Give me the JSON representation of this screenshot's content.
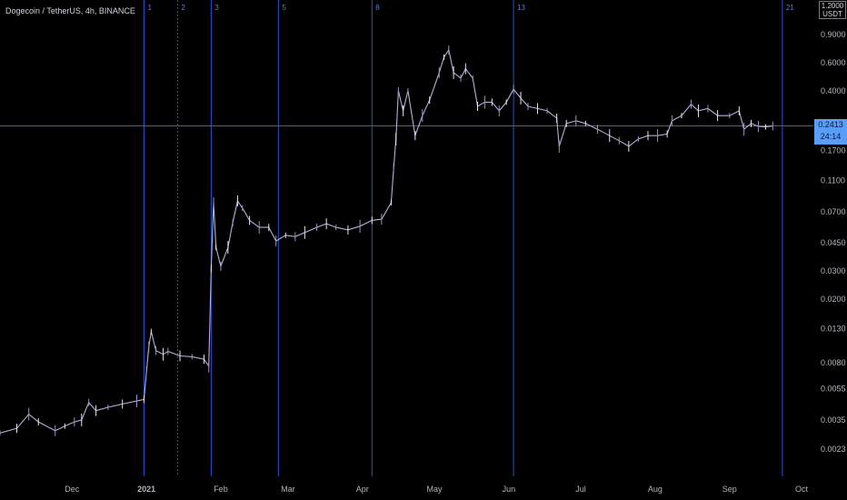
{
  "chart_data": {
    "type": "line",
    "title": "Dogecoin / TetherUS, 4h, BINANCE",
    "unit_label": "1.2000\nUSDT",
    "scale": "log",
    "ylim": [
      0.0019,
      1.25
    ],
    "y_ticks": [
      0.9,
      0.6,
      0.4,
      0.17,
      0.11,
      0.07,
      0.045,
      0.03,
      0.02,
      0.013,
      0.008,
      0.0055,
      0.0035,
      0.0023
    ],
    "x_labels": [
      {
        "label": "Dec",
        "x": "2020-12-01"
      },
      {
        "label": "2021",
        "x": "2021-01-01",
        "bold": true
      },
      {
        "label": "Feb",
        "x": "2021-02-01"
      },
      {
        "label": "Mar",
        "x": "2021-03-01"
      },
      {
        "label": "Apr",
        "x": "2021-04-01"
      },
      {
        "label": "May",
        "x": "2021-05-01"
      },
      {
        "label": "Jun",
        "x": "2021-06-01"
      },
      {
        "label": "Jul",
        "x": "2021-07-01"
      },
      {
        "label": "Aug",
        "x": "2021-08-01"
      },
      {
        "label": "Sep",
        "x": "2021-09-01"
      },
      {
        "label": "Oct",
        "x": "2021-10-01"
      }
    ],
    "vertical_markers": [
      {
        "label": "1",
        "x": "2020-12-31",
        "style": "solid"
      },
      {
        "label": "2",
        "x": "2021-01-14",
        "style": "dashed"
      },
      {
        "label": "3",
        "x": "2021-01-28",
        "style": "solid"
      },
      {
        "label": "5",
        "x": "2021-02-25",
        "style": "solid"
      },
      {
        "label": "8",
        "x": "2021-04-05",
        "style": "solid"
      },
      {
        "label": "13",
        "x": "2021-06-03",
        "style": "solid"
      },
      {
        "label": "21",
        "x": "2021-09-23",
        "style": "solid"
      }
    ],
    "current_price": {
      "value": "0.2413",
      "countdown": "24:14"
    },
    "series": [
      {
        "points": [
          [
            "2020-11-01",
            0.0029
          ],
          [
            "2020-11-08",
            0.0031
          ],
          [
            "2020-11-13",
            0.0038
          ],
          [
            "2020-11-17",
            0.0034
          ],
          [
            "2020-11-24",
            0.003
          ],
          [
            "2020-11-28",
            0.0032
          ],
          [
            "2020-12-02",
            0.0034
          ],
          [
            "2020-12-05",
            0.0035
          ],
          [
            "2020-12-08",
            0.0045
          ],
          [
            "2020-12-11",
            0.004
          ],
          [
            "2020-12-16",
            0.0042
          ],
          [
            "2020-12-22",
            0.0044
          ],
          [
            "2020-12-28",
            0.0046
          ],
          [
            "2020-12-31",
            0.0047
          ],
          [
            "2021-01-02",
            0.01
          ],
          [
            "2021-01-03",
            0.0125
          ],
          [
            "2021-01-05",
            0.0095
          ],
          [
            "2021-01-08",
            0.009
          ],
          [
            "2021-01-10",
            0.0094
          ],
          [
            "2021-01-15",
            0.0088
          ],
          [
            "2021-01-20",
            0.0087
          ],
          [
            "2021-01-25",
            0.0084
          ],
          [
            "2021-01-27",
            0.0076
          ],
          [
            "2021-01-28",
            0.031
          ],
          [
            "2021-01-29",
            0.08
          ],
          [
            "2021-01-30",
            0.042
          ],
          [
            "2021-02-01",
            0.032
          ],
          [
            "2021-02-04",
            0.042
          ],
          [
            "2021-02-06",
            0.06
          ],
          [
            "2021-02-08",
            0.082
          ],
          [
            "2021-02-10",
            0.074
          ],
          [
            "2021-02-13",
            0.062
          ],
          [
            "2021-02-17",
            0.056
          ],
          [
            "2021-02-21",
            0.056
          ],
          [
            "2021-02-24",
            0.046
          ],
          [
            "2021-02-28",
            0.05
          ],
          [
            "2021-03-04",
            0.049
          ],
          [
            "2021-03-08",
            0.052
          ],
          [
            "2021-03-13",
            0.056
          ],
          [
            "2021-03-17",
            0.059
          ],
          [
            "2021-03-21",
            0.056
          ],
          [
            "2021-03-26",
            0.054
          ],
          [
            "2021-03-31",
            0.057
          ],
          [
            "2021-04-05",
            0.062
          ],
          [
            "2021-04-09",
            0.063
          ],
          [
            "2021-04-13",
            0.08
          ],
          [
            "2021-04-14",
            0.13
          ],
          [
            "2021-04-15",
            0.2
          ],
          [
            "2021-04-16",
            0.4
          ],
          [
            "2021-04-18",
            0.3
          ],
          [
            "2021-04-20",
            0.4
          ],
          [
            "2021-04-23",
            0.21
          ],
          [
            "2021-04-26",
            0.28
          ],
          [
            "2021-04-29",
            0.35
          ],
          [
            "2021-05-03",
            0.52
          ],
          [
            "2021-05-05",
            0.65
          ],
          [
            "2021-05-07",
            0.72
          ],
          [
            "2021-05-09",
            0.52
          ],
          [
            "2021-05-12",
            0.48
          ],
          [
            "2021-05-14",
            0.55
          ],
          [
            "2021-05-17",
            0.48
          ],
          [
            "2021-05-19",
            0.32
          ],
          [
            "2021-05-22",
            0.34
          ],
          [
            "2021-05-25",
            0.34
          ],
          [
            "2021-05-28",
            0.3
          ],
          [
            "2021-05-31",
            0.34
          ],
          [
            "2021-06-03",
            0.41
          ],
          [
            "2021-06-06",
            0.36
          ],
          [
            "2021-06-09",
            0.32
          ],
          [
            "2021-06-13",
            0.31
          ],
          [
            "2021-06-17",
            0.3
          ],
          [
            "2021-06-21",
            0.27
          ],
          [
            "2021-06-22",
            0.18
          ],
          [
            "2021-06-25",
            0.25
          ],
          [
            "2021-06-29",
            0.26
          ],
          [
            "2021-07-03",
            0.25
          ],
          [
            "2021-07-08",
            0.23
          ],
          [
            "2021-07-13",
            0.21
          ],
          [
            "2021-07-17",
            0.195
          ],
          [
            "2021-07-21",
            0.18
          ],
          [
            "2021-07-25",
            0.2
          ],
          [
            "2021-07-29",
            0.21
          ],
          [
            "2021-08-02",
            0.21
          ],
          [
            "2021-08-06",
            0.215
          ],
          [
            "2021-08-08",
            0.26
          ],
          [
            "2021-08-12",
            0.28
          ],
          [
            "2021-08-16",
            0.33
          ],
          [
            "2021-08-19",
            0.3
          ],
          [
            "2021-08-23",
            0.31
          ],
          [
            "2021-08-27",
            0.28
          ],
          [
            "2021-09-01",
            0.28
          ],
          [
            "2021-09-05",
            0.3
          ],
          [
            "2021-09-07",
            0.23
          ],
          [
            "2021-09-10",
            0.25
          ],
          [
            "2021-09-13",
            0.24
          ],
          [
            "2021-09-16",
            0.238
          ],
          [
            "2021-09-19",
            0.2413
          ]
        ]
      }
    ]
  }
}
